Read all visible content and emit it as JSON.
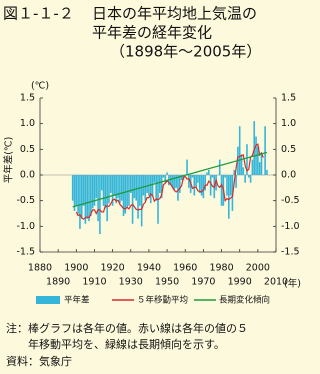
{
  "chart_data": {
    "type": "bar",
    "figure_label": "図１-１-２",
    "title": [
      "日本の年平均地上気温の",
      "平年差の経年変化",
      "（1898年～2005年）"
    ],
    "y_label": "平年差(℃)",
    "y_unit": "(℃)",
    "x_unit": "(年)",
    "xlim": [
      1880,
      2010
    ],
    "xticks": [
      1880,
      1890,
      1900,
      1910,
      1920,
      1930,
      1940,
      1950,
      1960,
      1970,
      1980,
      1990,
      2000,
      2010
    ],
    "ylim": [
      -1.5,
      1.5
    ],
    "yticks": [
      1.5,
      {
        "value": 1,
        "label": "1.0"
      },
      0.5,
      {
        "value": 0,
        "label": "0.0"
      },
      -0.5,
      {
        "value": -1,
        "label": "-1.0"
      },
      -1.5
    ],
    "y2lim": [
      -1.5,
      1.5
    ],
    "y2ticks": [
      1.5,
      {
        "value": 1,
        "label": "1.0"
      },
      0.5,
      {
        "value": 0,
        "label": "0.0"
      },
      -0.5,
      {
        "value": -1,
        "label": "-1.0"
      },
      -1.5
    ],
    "grid": false,
    "x": [
      1898,
      1899,
      1900,
      1901,
      1902,
      1903,
      1904,
      1905,
      1906,
      1907,
      1908,
      1909,
      1910,
      1911,
      1912,
      1913,
      1914,
      1915,
      1916,
      1917,
      1918,
      1919,
      1920,
      1921,
      1922,
      1923,
      1924,
      1925,
      1926,
      1927,
      1928,
      1929,
      1930,
      1931,
      1932,
      1933,
      1934,
      1935,
      1936,
      1937,
      1938,
      1939,
      1940,
      1941,
      1942,
      1943,
      1944,
      1945,
      1946,
      1947,
      1948,
      1949,
      1950,
      1951,
      1952,
      1953,
      1954,
      1955,
      1956,
      1957,
      1958,
      1959,
      1960,
      1961,
      1962,
      1963,
      1964,
      1965,
      1966,
      1967,
      1968,
      1969,
      1970,
      1971,
      1972,
      1973,
      1974,
      1975,
      1976,
      1977,
      1978,
      1979,
      1980,
      1981,
      1982,
      1983,
      1984,
      1985,
      1986,
      1987,
      1988,
      1989,
      1990,
      1991,
      1992,
      1993,
      1994,
      1995,
      1996,
      1997,
      1998,
      1999,
      2000,
      2001,
      2002,
      2003,
      2004,
      2005
    ],
    "series": [
      {
        "name": "平年差",
        "color": "#35b6d9",
        "kind": "bar",
        "values": [
          -0.5,
          -0.7,
          -0.6,
          -0.75,
          -1.05,
          -0.85,
          -0.6,
          -0.95,
          -0.85,
          -0.9,
          -0.8,
          -0.65,
          -0.6,
          -0.45,
          -0.9,
          -1.15,
          -0.3,
          -0.6,
          -0.65,
          -0.9,
          -0.55,
          -0.35,
          -0.6,
          -0.4,
          -0.55,
          -0.45,
          -0.55,
          -0.5,
          -0.8,
          -0.75,
          -0.65,
          -0.6,
          -0.35,
          -0.95,
          -0.45,
          -0.5,
          -0.85,
          -0.6,
          -1.0,
          -0.4,
          -0.5,
          -0.35,
          -0.4,
          -0.55,
          -0.4,
          -0.15,
          -0.5,
          -0.95,
          -0.35,
          -0.45,
          -0.05,
          -0.15,
          0.05,
          -0.2,
          -0.2,
          -0.25,
          -0.3,
          -0.25,
          -0.5,
          -0.35,
          -0.1,
          -0.1,
          0,
          0.3,
          -0.25,
          -0.35,
          -0.05,
          -0.4,
          -0.25,
          -0.15,
          -0.35,
          -0.4,
          -0.45,
          -0.3,
          0.05,
          0.1,
          -0.4,
          -0.05,
          -0.45,
          -0.3,
          0,
          0.3,
          -0.6,
          -0.6,
          -0.05,
          -0.4,
          -0.85,
          -0.4,
          -0.7,
          0.1,
          -0.25,
          0.55,
          0.95,
          0.4,
          0.15,
          -0.15,
          0.6,
          -0.05,
          -0.15,
          0.3,
          1.05,
          0.75,
          0.55,
          0.25,
          0.4,
          0,
          0.95,
          0.1
        ]
      },
      {
        "name": "５年移動平均",
        "color": "#d62b2b",
        "kind": "line",
        "values": [
          null,
          null,
          -0.72,
          -0.79,
          -0.77,
          -0.84,
          -0.86,
          -0.83,
          -0.82,
          -0.83,
          -0.76,
          -0.68,
          -0.68,
          -0.75,
          -0.68,
          -0.68,
          -0.72,
          -0.72,
          -0.6,
          -0.61,
          -0.61,
          -0.56,
          -0.49,
          -0.47,
          -0.51,
          -0.49,
          -0.57,
          -0.61,
          -0.65,
          -0.66,
          -0.63,
          -0.66,
          -0.6,
          -0.57,
          -0.62,
          -0.67,
          -0.68,
          -0.67,
          -0.67,
          -0.57,
          -0.53,
          -0.44,
          -0.44,
          -0.37,
          -0.4,
          -0.51,
          -0.47,
          -0.48,
          -0.46,
          -0.39,
          -0.19,
          -0.16,
          -0.11,
          -0.15,
          -0.18,
          -0.24,
          -0.3,
          -0.33,
          -0.3,
          -0.26,
          -0.21,
          -0.05,
          -0.03,
          -0.08,
          -0.07,
          -0.15,
          -0.26,
          -0.24,
          -0.24,
          -0.31,
          -0.32,
          -0.33,
          -0.29,
          -0.2,
          -0.2,
          -0.12,
          -0.15,
          -0.22,
          -0.24,
          -0.1,
          -0.21,
          -0.24,
          -0.19,
          -0.27,
          -0.5,
          -0.46,
          -0.48,
          -0.45,
          -0.42,
          -0.14,
          0.13,
          0.35,
          0.36,
          0.38,
          0.39,
          0.19,
          0.08,
          0.11,
          0.35,
          0.38,
          0.5,
          0.58,
          0.6,
          0.39,
          0.43,
          0.34,
          null,
          null
        ]
      }
    ],
    "trend": {
      "name": "長期変化傾向",
      "color": "#1f9a3c",
      "x": [
        1898,
        2005
      ],
      "values": [
        -0.62,
        0.44
      ]
    },
    "notes": [
      "注：棒グラフは各年の値。赤い線は各年の値の５",
      "年移動平均を、緑線は長期傾向を示す。",
      "資料：気象庁"
    ]
  }
}
